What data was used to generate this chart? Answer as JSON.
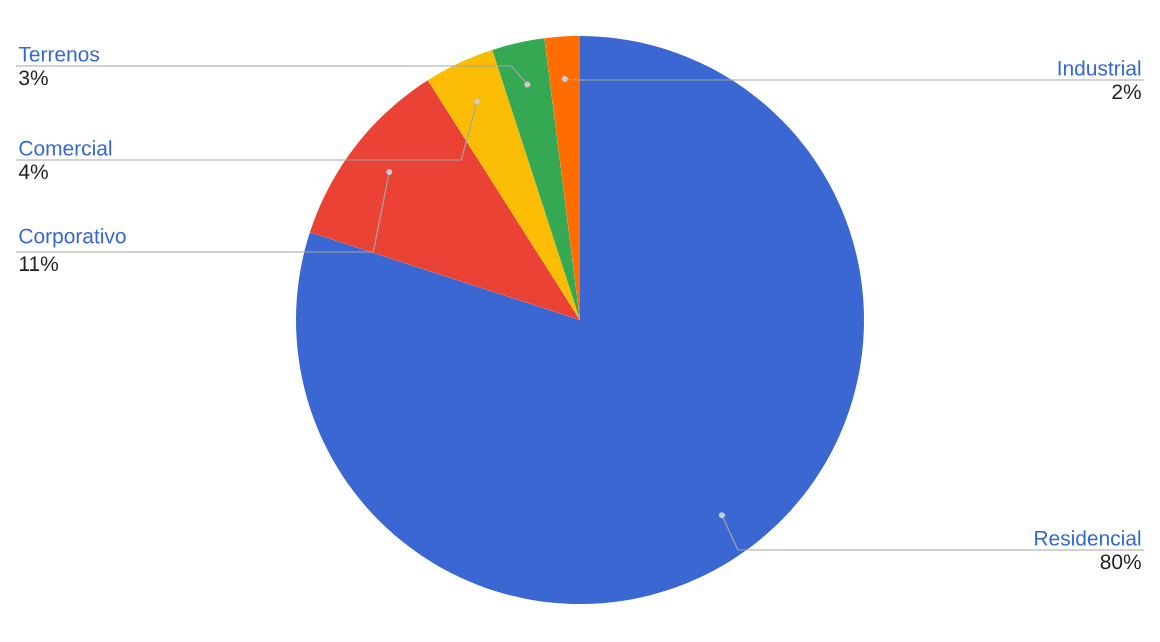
{
  "chart_data": {
    "type": "pie",
    "categories": [
      "Residencial",
      "Corporativo",
      "Comercial",
      "Terrenos",
      "Industrial"
    ],
    "values": [
      80,
      11,
      4,
      3,
      2
    ],
    "value_labels": [
      "80%",
      "11%",
      "4%",
      "3%",
      "2%"
    ],
    "colors": [
      "#3b67d3",
      "#ea4335",
      "#fbbc04",
      "#34a853",
      "#ff6d01"
    ]
  }
}
